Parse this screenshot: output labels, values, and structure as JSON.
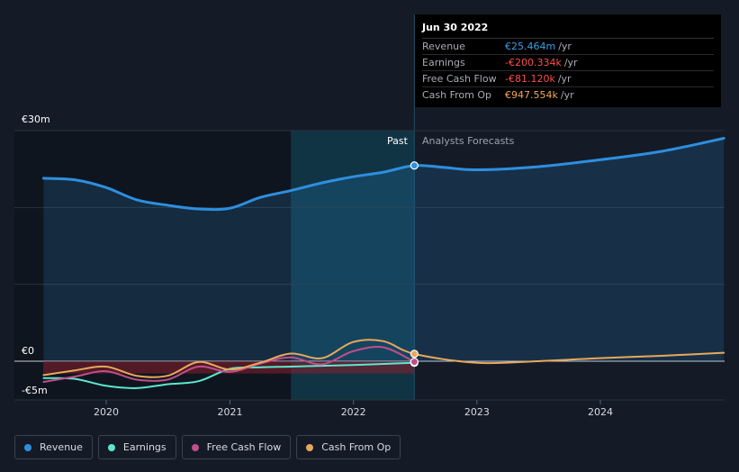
{
  "tooltip": {
    "date": "Jun 30 2022",
    "rows": [
      {
        "label": "Revenue",
        "value": "€25.464m",
        "unit": "/yr",
        "color": "#3b9fe4"
      },
      {
        "label": "Earnings",
        "value": "-€200.334k",
        "unit": "/yr",
        "color": "#ff4d4d"
      },
      {
        "label": "Free Cash Flow",
        "value": "-€81.120k",
        "unit": "/yr",
        "color": "#ff4d4d"
      },
      {
        "label": "Cash From Op",
        "value": "€947.554k",
        "unit": "/yr",
        "color": "#f2a65a"
      }
    ]
  },
  "labels": {
    "past": "Past",
    "forecast": "Analysts Forecasts"
  },
  "legend": [
    {
      "label": "Revenue",
      "color": "#2d8fe0"
    },
    {
      "label": "Earnings",
      "color": "#5ce8cf"
    },
    {
      "label": "Free Cash Flow",
      "color": "#c04f8b"
    },
    {
      "label": "Cash From Op",
      "color": "#e8a85c"
    }
  ],
  "chart_data": {
    "type": "line",
    "y_unit": "€m",
    "ylim": [
      -5,
      30
    ],
    "y_ticks": [
      {
        "value": 30,
        "label": "€30m"
      },
      {
        "value": 0,
        "label": "€0"
      },
      {
        "value": -5,
        "label": "-€5m"
      }
    ],
    "x_ticks": [
      "2020",
      "2021",
      "2022",
      "2023",
      "2024"
    ],
    "past_forecast_split": "2022-06-30",
    "series": [
      {
        "name": "Revenue",
        "color": "#2d8fe0",
        "points": [
          [
            "2019-06-30",
            23.8
          ],
          [
            "2019-09-30",
            23.6
          ],
          [
            "2019-12-31",
            22.6
          ],
          [
            "2020-03-31",
            21.0
          ],
          [
            "2020-06-30",
            20.3
          ],
          [
            "2020-09-30",
            19.8
          ],
          [
            "2020-12-31",
            19.9
          ],
          [
            "2021-03-31",
            21.3
          ],
          [
            "2021-06-30",
            22.2
          ],
          [
            "2021-09-30",
            23.2
          ],
          [
            "2021-12-31",
            24.0
          ],
          [
            "2022-03-31",
            24.6
          ],
          [
            "2022-06-30",
            25.46
          ],
          [
            "2022-09-30",
            25.2
          ],
          [
            "2022-12-31",
            24.9
          ],
          [
            "2023-06-30",
            25.3
          ],
          [
            "2023-12-31",
            26.2
          ],
          [
            "2024-06-30",
            27.3
          ],
          [
            "2024-12-31",
            29.0
          ]
        ]
      },
      {
        "name": "Earnings",
        "color": "#5ce8cf",
        "points": [
          [
            "2019-06-30",
            -2.2
          ],
          [
            "2019-09-30",
            -2.3
          ],
          [
            "2019-12-31",
            -3.2
          ],
          [
            "2020-03-31",
            -3.5
          ],
          [
            "2020-06-30",
            -3.0
          ],
          [
            "2020-09-30",
            -2.6
          ],
          [
            "2020-12-31",
            -1.0
          ],
          [
            "2021-03-31",
            -0.8
          ],
          [
            "2021-06-30",
            -0.7
          ],
          [
            "2021-09-30",
            -0.6
          ],
          [
            "2021-12-31",
            -0.5
          ],
          [
            "2022-03-31",
            -0.35
          ],
          [
            "2022-06-30",
            -0.2
          ]
        ]
      },
      {
        "name": "Free Cash Flow",
        "color": "#c04f8b",
        "points": [
          [
            "2019-06-30",
            -2.7
          ],
          [
            "2019-09-30",
            -2.0
          ],
          [
            "2019-12-31",
            -1.3
          ],
          [
            "2020-03-31",
            -2.4
          ],
          [
            "2020-06-30",
            -2.4
          ],
          [
            "2020-09-30",
            -0.7
          ],
          [
            "2020-12-31",
            -1.4
          ],
          [
            "2021-03-31",
            -0.3
          ],
          [
            "2021-06-30",
            0.5
          ],
          [
            "2021-09-30",
            -0.4
          ],
          [
            "2021-12-31",
            1.3
          ],
          [
            "2022-03-31",
            1.8
          ],
          [
            "2022-06-30",
            -0.08
          ]
        ]
      },
      {
        "name": "Cash From Op",
        "color": "#e8a85c",
        "points": [
          [
            "2019-06-30",
            -1.8
          ],
          [
            "2019-09-30",
            -1.2
          ],
          [
            "2019-12-31",
            -0.7
          ],
          [
            "2020-03-31",
            -1.9
          ],
          [
            "2020-06-30",
            -1.9
          ],
          [
            "2020-09-30",
            -0.1
          ],
          [
            "2020-12-31",
            -1.1
          ],
          [
            "2021-03-31",
            -0.2
          ],
          [
            "2021-06-30",
            1.0
          ],
          [
            "2021-09-30",
            0.4
          ],
          [
            "2021-12-31",
            2.5
          ],
          [
            "2022-03-31",
            2.6
          ],
          [
            "2022-06-30",
            0.95
          ],
          [
            "2022-12-31",
            -0.2
          ],
          [
            "2023-06-30",
            0.0
          ],
          [
            "2023-12-31",
            0.4
          ],
          [
            "2024-06-30",
            0.7
          ],
          [
            "2024-12-31",
            1.1
          ]
        ]
      }
    ]
  }
}
